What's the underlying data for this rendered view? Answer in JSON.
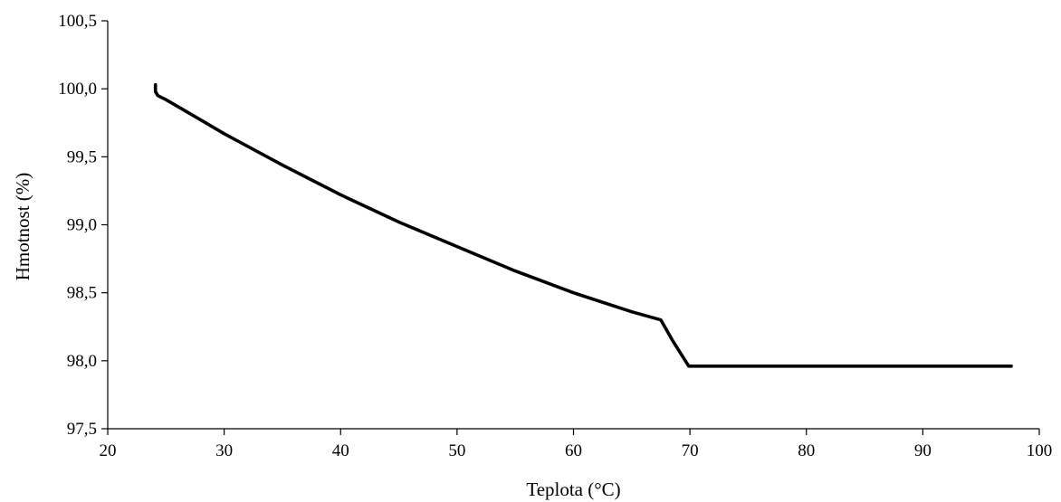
{
  "chart_data": {
    "type": "line",
    "title": "",
    "xlabel": "Teplota (°C)",
    "ylabel": "Hmotnost (%)",
    "xlim": [
      20,
      100
    ],
    "ylim": [
      97.5,
      100.5
    ],
    "xticks": [
      20,
      30,
      40,
      50,
      60,
      70,
      80,
      90,
      100
    ],
    "xtick_labels": [
      "20",
      "30",
      "40",
      "50",
      "60",
      "70",
      "80",
      "90",
      "100"
    ],
    "yticks": [
      97.5,
      98.0,
      98.5,
      99.0,
      99.5,
      100.0,
      100.5
    ],
    "ytick_labels": [
      "97,5",
      "98,0",
      "98,5",
      "99,0",
      "99,5",
      "100,0",
      "100,5"
    ],
    "grid": false,
    "legend": false,
    "line_color": "#000000",
    "series": [
      {
        "x": [
          24.1,
          24.1,
          24.3,
          25.0,
          26.0,
          28.0,
          30.0,
          35.0,
          40.0,
          45.0,
          50.0,
          55.0,
          60.0,
          65.0,
          67.5,
          68.5,
          69.9,
          70.5,
          75.0,
          80.0,
          85.0,
          90.0,
          95.0,
          97.6
        ],
        "y": [
          100.03,
          99.98,
          99.95,
          99.92,
          99.87,
          99.77,
          99.67,
          99.44,
          99.22,
          99.02,
          98.84,
          98.66,
          98.5,
          98.36,
          98.3,
          98.15,
          97.96,
          97.96,
          97.96,
          97.96,
          97.96,
          97.96,
          97.96,
          97.96
        ]
      }
    ]
  }
}
